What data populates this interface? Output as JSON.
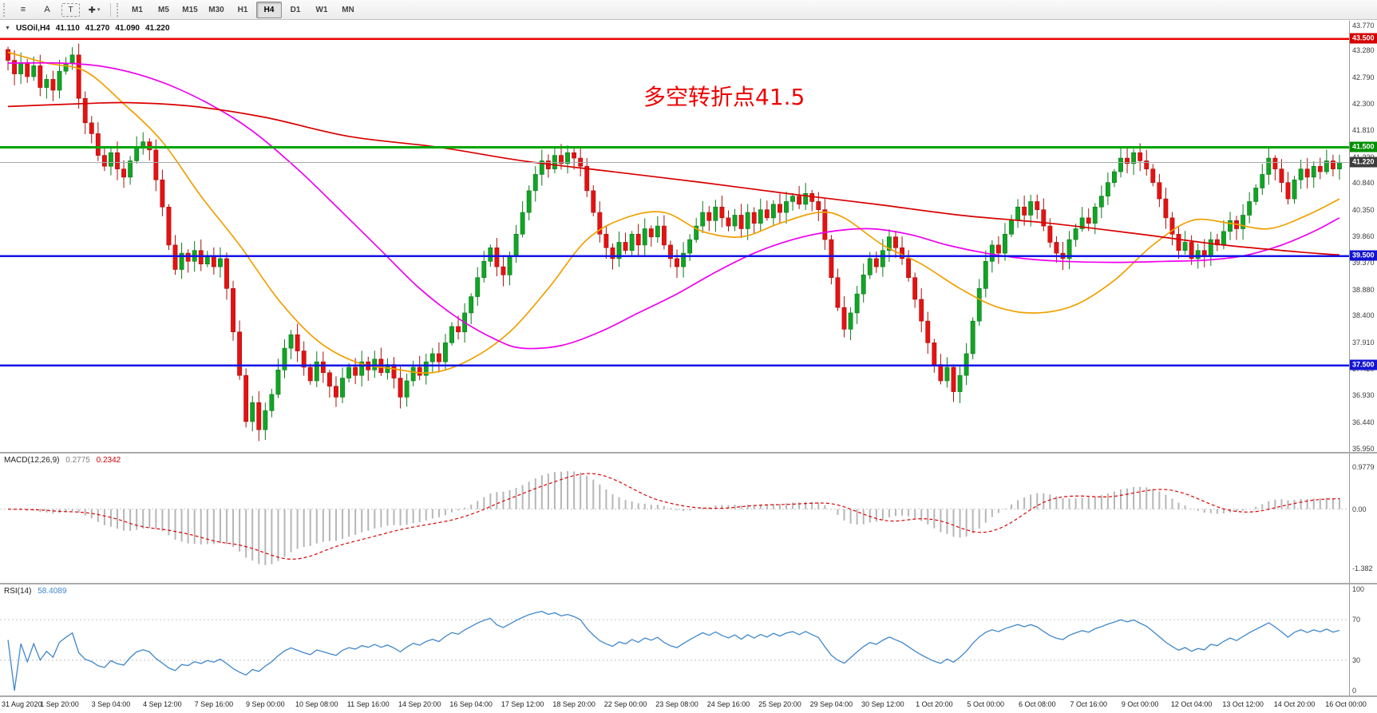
{
  "toolbar": {
    "tool_menu": "≡",
    "tool_a": "A",
    "tool_t": "T",
    "tool_cursor": "✚",
    "tool_caret": "▾",
    "timeframes": [
      "M1",
      "M5",
      "M15",
      "M30",
      "H1",
      "H4",
      "D1",
      "W1",
      "MN"
    ],
    "active_timeframe": "H4"
  },
  "header": {
    "dropdown": "▼",
    "symbol": "USOil,H4",
    "open": "41.110",
    "high": "41.270",
    "low": "41.090",
    "close": "41.220"
  },
  "chart_data": {
    "type": "candlestick",
    "symbol": "USOil",
    "timeframe": "H4",
    "annotation": {
      "text": "多空转折点41.5",
      "color": "#ee0000"
    },
    "y_axis": {
      "max": 43.77,
      "min": 35.95,
      "labels": [
        "43.770",
        "43.280",
        "42.790",
        "42.300",
        "41.810",
        "41.320",
        "40.840",
        "40.350",
        "39.860",
        "39.370",
        "38.880",
        "38.400",
        "37.910",
        "37.420",
        "36.930",
        "36.440",
        "35.950"
      ]
    },
    "x_labels": [
      "31 Aug 2020",
      "1 Sep 20:00",
      "3 Sep 04:00",
      "4 Sep 12:00",
      "7 Sep 16:00",
      "9 Sep 00:00",
      "10 Sep 08:00",
      "11 Sep 16:00",
      "14 Sep 20:00",
      "16 Sep 04:00",
      "17 Sep 12:00",
      "18 Sep 20:00",
      "22 Sep 00:00",
      "23 Sep 08:00",
      "24 Sep 16:00",
      "25 Sep 20:00",
      "29 Sep 04:00",
      "30 Sep 12:00",
      "1 Oct 20:00",
      "5 Oct 00:00",
      "6 Oct 08:00",
      "7 Oct 16:00",
      "9 Oct 00:00",
      "12 Oct 04:00",
      "13 Oct 12:00",
      "14 Oct 20:00",
      "16 Oct 00:00"
    ],
    "levels": [
      {
        "price": 43.5,
        "label": "43.500",
        "color": "#ee0000",
        "badge": "#d40000",
        "width": 2.5
      },
      {
        "price": 41.5,
        "label": "41.500",
        "color": "#00a400",
        "badge": "#008f00",
        "width": 3
      },
      {
        "price": 41.22,
        "label": "41.220",
        "color": "#a9a9a9",
        "badge": "#3c3c3c",
        "width": 1
      },
      {
        "price": 39.5,
        "label": "39.500",
        "color": "#1414e6",
        "badge": "#1414d4",
        "width": 2.5
      },
      {
        "price": 37.5,
        "label": "37.500",
        "color": "#1414e6",
        "badge": "#1414d4",
        "width": 2.5
      }
    ],
    "candles": {
      "first_open": 43.3,
      "up_color": "#12a425",
      "up_stroke": "#0a7a1b",
      "down_color": "#e51212",
      "down_stroke": "#a80f0f",
      "closes": [
        43.1,
        42.85,
        43.05,
        42.8,
        43.0,
        42.6,
        42.75,
        42.55,
        42.9,
        43.05,
        43.2,
        42.4,
        41.95,
        41.75,
        41.35,
        41.15,
        41.4,
        41.1,
        40.95,
        41.25,
        41.5,
        41.6,
        41.45,
        40.9,
        40.4,
        39.7,
        39.25,
        39.55,
        39.4,
        39.6,
        39.35,
        39.5,
        39.3,
        39.45,
        38.9,
        38.1,
        37.3,
        36.45,
        36.8,
        36.3,
        36.65,
        36.95,
        37.4,
        37.8,
        38.05,
        37.75,
        37.45,
        37.2,
        37.55,
        37.35,
        37.1,
        36.9,
        37.25,
        37.45,
        37.3,
        37.55,
        37.4,
        37.6,
        37.35,
        37.5,
        37.25,
        36.9,
        37.2,
        37.45,
        37.3,
        37.55,
        37.7,
        37.55,
        37.9,
        38.2,
        38.1,
        38.45,
        38.75,
        39.1,
        39.4,
        39.65,
        39.3,
        39.15,
        39.5,
        39.9,
        40.3,
        40.7,
        41.0,
        41.25,
        41.1,
        41.35,
        41.2,
        41.4,
        41.3,
        41.15,
        40.7,
        40.3,
        39.9,
        39.65,
        39.45,
        39.75,
        39.6,
        39.9,
        39.7,
        40.0,
        39.85,
        40.05,
        39.7,
        39.45,
        39.3,
        39.55,
        39.8,
        40.05,
        40.3,
        40.15,
        40.4,
        40.2,
        40.05,
        40.25,
        40.0,
        40.3,
        40.1,
        40.35,
        40.2,
        40.45,
        40.3,
        40.5,
        40.6,
        40.45,
        40.65,
        40.5,
        40.35,
        39.8,
        39.1,
        38.55,
        38.15,
        38.45,
        38.8,
        39.15,
        39.45,
        39.3,
        39.6,
        39.85,
        39.65,
        39.45,
        39.1,
        38.7,
        38.3,
        37.9,
        37.5,
        37.2,
        37.45,
        37.0,
        37.3,
        37.7,
        38.3,
        38.9,
        39.4,
        39.7,
        39.55,
        39.9,
        40.15,
        40.4,
        40.25,
        40.5,
        40.35,
        40.05,
        39.75,
        39.55,
        39.45,
        39.8,
        40.0,
        40.2,
        40.1,
        40.4,
        40.6,
        40.85,
        41.05,
        41.3,
        41.2,
        41.4,
        41.25,
        41.1,
        40.85,
        40.55,
        40.2,
        39.9,
        39.6,
        39.75,
        39.45,
        39.6,
        39.5,
        39.8,
        39.7,
        39.95,
        40.15,
        40.0,
        40.25,
        40.5,
        40.75,
        41.0,
        41.3,
        41.1,
        40.85,
        40.55,
        40.9,
        41.1,
        40.95,
        41.15,
        41.05,
        41.25,
        41.1,
        41.22
      ]
    },
    "moving_averages": [
      {
        "name": "ma-fast-orange",
        "color": "#f0a000",
        "points": [
          [
            0,
            43.25
          ],
          [
            6,
            43.05
          ],
          [
            12,
            42.9
          ],
          [
            18,
            42.3
          ],
          [
            24,
            41.6
          ],
          [
            30,
            40.6
          ],
          [
            36,
            39.7
          ],
          [
            42,
            38.7
          ],
          [
            48,
            37.95
          ],
          [
            54,
            37.55
          ],
          [
            60,
            37.42
          ],
          [
            66,
            37.35
          ],
          [
            72,
            37.6
          ],
          [
            78,
            38.1
          ],
          [
            84,
            38.9
          ],
          [
            90,
            39.8
          ],
          [
            96,
            40.2
          ],
          [
            102,
            40.3
          ],
          [
            108,
            39.95
          ],
          [
            114,
            39.85
          ],
          [
            120,
            40.1
          ],
          [
            126,
            40.3
          ],
          [
            130,
            40.2
          ],
          [
            136,
            39.7
          ],
          [
            142,
            39.35
          ],
          [
            148,
            38.9
          ],
          [
            154,
            38.55
          ],
          [
            160,
            38.45
          ],
          [
            166,
            38.6
          ],
          [
            172,
            39.05
          ],
          [
            178,
            39.7
          ],
          [
            184,
            40.15
          ],
          [
            190,
            40.1
          ],
          [
            196,
            40.0
          ],
          [
            202,
            40.25
          ],
          [
            207,
            40.55
          ]
        ]
      },
      {
        "name": "ma-medium-magenta",
        "color": "#ee00ee",
        "points": [
          [
            0,
            43.05
          ],
          [
            8,
            43.05
          ],
          [
            14,
            43.0
          ],
          [
            20,
            42.85
          ],
          [
            26,
            42.6
          ],
          [
            32,
            42.25
          ],
          [
            38,
            41.8
          ],
          [
            45,
            41.1
          ],
          [
            52,
            40.3
          ],
          [
            58,
            39.6
          ],
          [
            64,
            38.9
          ],
          [
            70,
            38.35
          ],
          [
            76,
            37.95
          ],
          [
            80,
            37.8
          ],
          [
            86,
            37.85
          ],
          [
            92,
            38.1
          ],
          [
            98,
            38.45
          ],
          [
            104,
            38.8
          ],
          [
            110,
            39.2
          ],
          [
            116,
            39.55
          ],
          [
            122,
            39.8
          ],
          [
            128,
            39.95
          ],
          [
            134,
            40.0
          ],
          [
            140,
            39.9
          ],
          [
            146,
            39.7
          ],
          [
            152,
            39.55
          ],
          [
            158,
            39.45
          ],
          [
            164,
            39.4
          ],
          [
            172,
            39.38
          ],
          [
            180,
            39.4
          ],
          [
            186,
            39.42
          ],
          [
            192,
            39.5
          ],
          [
            198,
            39.7
          ],
          [
            203,
            39.95
          ],
          [
            207,
            40.2
          ]
        ]
      },
      {
        "name": "ma-slow-red",
        "color": "#d90000",
        "points": [
          [
            0,
            42.25
          ],
          [
            11,
            42.3
          ],
          [
            19,
            42.32
          ],
          [
            29,
            42.25
          ],
          [
            40,
            42.05
          ],
          [
            53,
            41.7
          ],
          [
            67,
            41.5
          ],
          [
            80,
            41.25
          ],
          [
            94,
            41.05
          ],
          [
            108,
            40.85
          ],
          [
            121,
            40.65
          ],
          [
            135,
            40.45
          ],
          [
            148,
            40.25
          ],
          [
            162,
            40.1
          ],
          [
            176,
            39.9
          ],
          [
            189,
            39.7
          ],
          [
            203,
            39.55
          ],
          [
            207,
            39.52
          ]
        ]
      }
    ],
    "indicators": {
      "macd": {
        "label": "MACD(12,26,9)",
        "value_main": "0.2775",
        "value_signal": "0.2342",
        "fast": 12,
        "slow": 26,
        "signal": 9,
        "axis": [
          "0.9779",
          "0.00",
          "-1.382"
        ],
        "axis_range": [
          -1.6,
          1.18
        ],
        "hist_color": "#b6b6b6",
        "signal_color": "#dd0000"
      },
      "rsi": {
        "label": "RSI(14)",
        "value": "58.4089",
        "period": 14,
        "axis": [
          "100",
          "70",
          "30",
          "0"
        ],
        "levels": [
          70,
          30
        ],
        "range": [
          0,
          100
        ],
        "color": "#3f87c9"
      }
    }
  }
}
